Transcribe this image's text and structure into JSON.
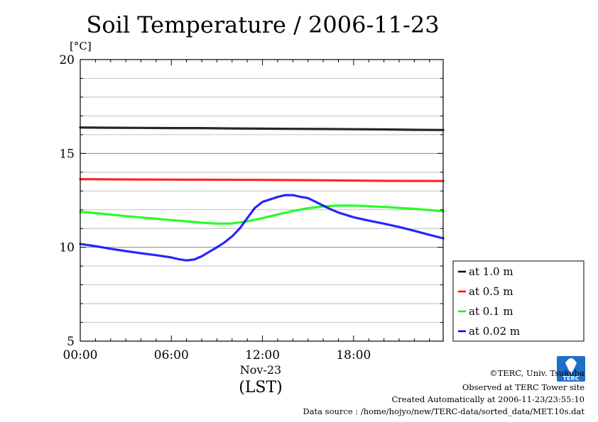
{
  "chart_data": {
    "type": "line",
    "title": "Soil Temperature / 2006-11-23",
    "y_unit": "[°C]",
    "ylim": [
      5,
      20
    ],
    "y_ticks": [
      "5",
      "10",
      "15",
      "20"
    ],
    "y_grid_step": 1,
    "xlim": [
      0,
      23.9
    ],
    "x_ticks": [
      {
        "h": 0,
        "label": "00:00"
      },
      {
        "h": 6,
        "label": "06:00"
      },
      {
        "h": 12,
        "label": "12:00"
      },
      {
        "h": 18,
        "label": "18:00"
      }
    ],
    "x_sublabel": "Nov-23",
    "x_unit": "(LST)",
    "grid": "horizontal",
    "legend_position": "right",
    "series": [
      {
        "name": "at 1.0 m",
        "color": "#000000",
        "x": [
          0,
          2,
          4,
          6,
          8,
          10,
          12,
          14,
          16,
          18,
          20,
          22,
          23.9
        ],
        "y": [
          16.38,
          16.37,
          16.36,
          16.35,
          16.35,
          16.33,
          16.32,
          16.31,
          16.3,
          16.29,
          16.28,
          16.26,
          16.25
        ]
      },
      {
        "name": "at 0.5 m",
        "color": "#ff0000",
        "x": [
          0,
          4,
          8,
          12,
          16,
          20,
          23.9
        ],
        "y": [
          13.63,
          13.61,
          13.6,
          13.59,
          13.57,
          13.54,
          13.53
        ]
      },
      {
        "name": "at 0.1 m",
        "color": "#00ff00",
        "x": [
          0,
          1,
          2,
          3,
          4,
          5,
          6,
          7,
          8,
          9,
          10,
          11,
          12,
          13,
          14,
          15,
          16,
          17,
          18,
          19,
          20,
          21,
          22,
          23,
          23.9
        ],
        "y": [
          11.9,
          11.82,
          11.74,
          11.66,
          11.59,
          11.52,
          11.45,
          11.38,
          11.31,
          11.26,
          11.27,
          11.38,
          11.55,
          11.75,
          11.93,
          12.08,
          12.18,
          12.22,
          12.22,
          12.19,
          12.15,
          12.1,
          12.05,
          11.98,
          11.92
        ]
      },
      {
        "name": "at 0.02 m",
        "color": "#0000ff",
        "x": [
          0,
          1,
          2,
          3,
          4,
          5,
          6,
          6.5,
          7,
          7.5,
          8,
          8.5,
          9,
          9.5,
          10,
          10.5,
          11,
          11.5,
          12,
          12.5,
          13,
          13.5,
          14,
          14.5,
          15,
          15.5,
          16,
          16.5,
          17,
          18,
          19,
          20,
          21,
          22,
          23,
          23.9
        ],
        "y": [
          10.18,
          10.06,
          9.92,
          9.8,
          9.68,
          9.58,
          9.46,
          9.36,
          9.3,
          9.35,
          9.52,
          9.76,
          10.0,
          10.26,
          10.58,
          11.0,
          11.55,
          12.1,
          12.42,
          12.55,
          12.68,
          12.78,
          12.78,
          12.69,
          12.62,
          12.42,
          12.22,
          12.02,
          11.85,
          11.6,
          11.42,
          11.26,
          11.08,
          10.88,
          10.66,
          10.48
        ]
      }
    ]
  },
  "footer": {
    "copyright": "©TERC, Univ. Tsukuba",
    "observed": "Observed at TERC Tower site",
    "created": "Created Automatically at 2006-11-23/23:55:10",
    "source": "Data source : /home/hojyo/new/TERC-data/sorted_data/MET.10s.dat"
  },
  "logo": {
    "text": "TERC",
    "color": "#1e6fc9"
  }
}
